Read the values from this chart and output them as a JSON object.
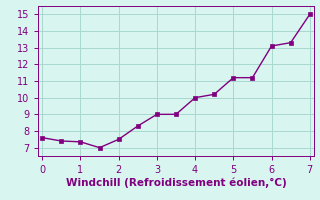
{
  "x": [
    0,
    0.5,
    1.0,
    1.5,
    2.0,
    2.5,
    3.0,
    3.5,
    4.0,
    4.5,
    5.0,
    5.5,
    6.0,
    6.5,
    7.0
  ],
  "y": [
    7.6,
    7.4,
    7.35,
    7.0,
    7.5,
    8.3,
    9.0,
    9.0,
    10.0,
    10.2,
    11.2,
    11.2,
    13.1,
    13.3,
    15.0
  ],
  "line_color": "#800080",
  "marker_color": "#800080",
  "bg_color": "#d8f5f0",
  "grid_color": "#a8d8d0",
  "axis_color": "#800080",
  "tick_color": "#800080",
  "xlabel": "Windchill (Refroidissement éolien,°C)",
  "xlim": [
    -0.1,
    7.1
  ],
  "ylim": [
    6.5,
    15.5
  ],
  "xticks": [
    0,
    1,
    2,
    3,
    4,
    5,
    6,
    7
  ],
  "yticks": [
    7,
    8,
    9,
    10,
    11,
    12,
    13,
    14,
    15
  ],
  "xlabel_fontsize": 7.5,
  "tick_fontsize": 7.0,
  "line_width": 1.0,
  "marker_size": 2.5
}
